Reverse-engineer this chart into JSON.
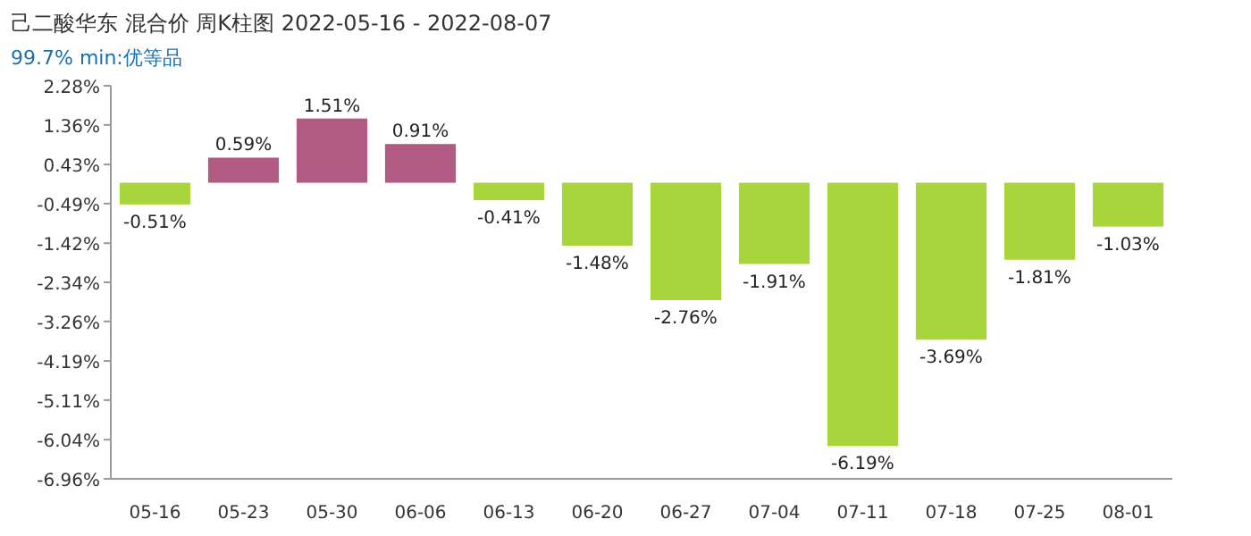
{
  "chart_data": {
    "type": "bar",
    "title": "己二酸华东 混合价 周K柱图 2022-05-16 - 2022-08-07",
    "subtitle": "99.7% min:优等品",
    "categories": [
      "05-16",
      "05-23",
      "05-30",
      "06-06",
      "06-13",
      "06-20",
      "06-27",
      "07-04",
      "07-11",
      "07-18",
      "07-25",
      "08-01"
    ],
    "values": [
      -0.51,
      0.59,
      1.51,
      0.91,
      -0.41,
      -1.48,
      -2.76,
      -1.91,
      -6.19,
      -3.69,
      -1.81,
      -1.03
    ],
    "colors": [
      "#a8d43c",
      "#b05a84",
      "#b05a84",
      "#b05a84",
      "#a8d43c",
      "#a8d43c",
      "#a8d43c",
      "#a8d43c",
      "#a8d43c",
      "#a8d43c",
      "#a8d43c",
      "#a8d43c"
    ],
    "value_labels": [
      "-0.51%",
      "0.59%",
      "1.51%",
      "0.91%",
      "-0.41%",
      "-1.48%",
      "-2.76%",
      "-1.91%",
      "-6.19%",
      "-3.69%",
      "-1.81%",
      "-1.03%"
    ],
    "ylim": [
      -6.96,
      2.28
    ],
    "yticks": [
      {
        "value": 2.28,
        "label": "2.28%"
      },
      {
        "value": 1.36,
        "label": "1.36%"
      },
      {
        "value": 0.43,
        "label": "0.43%"
      },
      {
        "value": -0.49,
        "label": "-0.49%"
      },
      {
        "value": -1.42,
        "label": "-1.42%"
      },
      {
        "value": -2.34,
        "label": "-2.34%"
      },
      {
        "value": -3.26,
        "label": "-3.26%"
      },
      {
        "value": -4.19,
        "label": "-4.19%"
      },
      {
        "value": -5.11,
        "label": "-5.11%"
      },
      {
        "value": -6.04,
        "label": "-6.04%"
      },
      {
        "value": -6.96,
        "label": "-6.96%"
      }
    ]
  }
}
